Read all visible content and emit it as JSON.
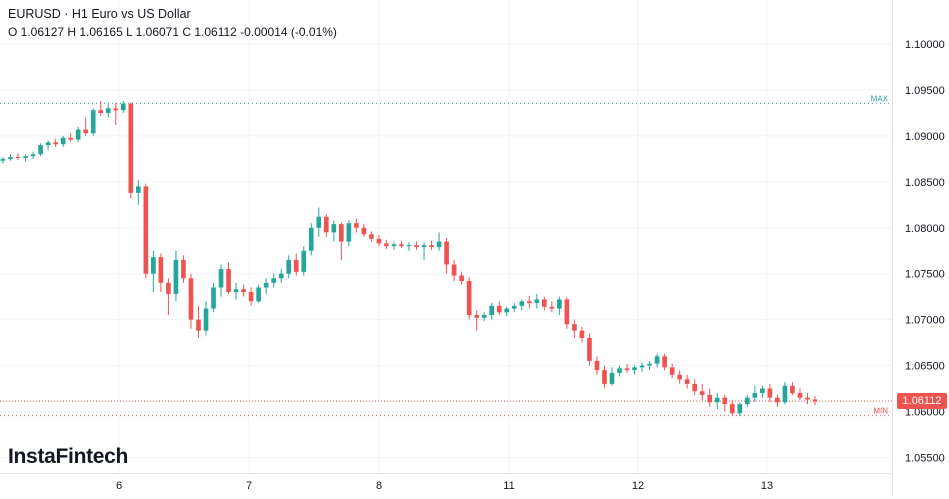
{
  "header": {
    "title": "EURUSD · H1 Euro vs US Dollar",
    "ohlc": "O 1.06127 H 1.06165 L 1.06071 C 1.06112  -0.00014 (-0.01%)"
  },
  "logo": "InstaFintech",
  "last_price_label": "1.06112",
  "colors": {
    "up": "#26a69a",
    "down": "#ef5350",
    "grid": "#f0f3fa",
    "text": "#131722"
  },
  "chart_data": {
    "type": "candlestick",
    "title": "EURUSD · H1 Euro vs US Dollar",
    "xlabel": "",
    "ylabel": "",
    "ylim": [
      1.0533,
      1.1048
    ],
    "y_ticks": [
      1.1,
      1.095,
      1.09,
      1.085,
      1.08,
      1.075,
      1.07,
      1.065,
      1.06,
      1.055
    ],
    "y_tick_labels": [
      "1.10000",
      "1.09500",
      "1.09000",
      "1.08500",
      "1.08000",
      "1.07500",
      "1.07000",
      "1.06500",
      "1.06000",
      "1.05500"
    ],
    "x_tick_labels": [
      "6",
      "7",
      "8",
      "11",
      "12",
      "13"
    ],
    "max_line": {
      "label": "MAX",
      "value": 1.09355
    },
    "min_line": {
      "label": "MIN",
      "value": 1.05955
    },
    "last_price": 1.06112,
    "candles": [
      [
        1.0873,
        1.0877,
        1.087,
        1.0875
      ],
      [
        1.0875,
        1.088,
        1.0873,
        1.0877
      ],
      [
        1.0877,
        1.0881,
        1.0874,
        1.0876
      ],
      [
        1.0876,
        1.088,
        1.0872,
        1.0878
      ],
      [
        1.0878,
        1.0883,
        1.0875,
        1.088
      ],
      [
        1.088,
        1.0892,
        1.0878,
        1.089
      ],
      [
        1.089,
        1.0895,
        1.0885,
        1.0893
      ],
      [
        1.0893,
        1.0897,
        1.0888,
        1.0891
      ],
      [
        1.0891,
        1.09,
        1.0888,
        1.0898
      ],
      [
        1.0898,
        1.0903,
        1.0894,
        1.0896
      ],
      [
        1.0896,
        1.091,
        1.0893,
        1.0907
      ],
      [
        1.0907,
        1.092,
        1.09,
        1.0903
      ],
      [
        1.0903,
        1.093,
        1.09,
        1.0928
      ],
      [
        1.0928,
        1.0938,
        1.0922,
        1.0925
      ],
      [
        1.0925,
        1.0935,
        1.092,
        1.093
      ],
      [
        1.093,
        1.0936,
        1.0912,
        1.0928
      ],
      [
        1.0928,
        1.0938,
        1.0925,
        1.0935
      ],
      [
        1.0935,
        1.0937,
        1.0832,
        1.0838
      ],
      [
        1.0838,
        1.0852,
        1.0825,
        1.0845
      ],
      [
        1.0845,
        1.0848,
        1.0745,
        1.075
      ],
      [
        1.075,
        1.0775,
        1.073,
        1.0768
      ],
      [
        1.0768,
        1.0772,
        1.073,
        1.074
      ],
      [
        1.074,
        1.0745,
        1.0705,
        1.0728
      ],
      [
        1.0728,
        1.0775,
        1.072,
        1.0765
      ],
      [
        1.0765,
        1.077,
        1.074,
        1.0745
      ],
      [
        1.0745,
        1.075,
        1.069,
        1.07
      ],
      [
        1.07,
        1.0715,
        1.068,
        1.0688
      ],
      [
        1.0688,
        1.072,
        1.0683,
        1.0712
      ],
      [
        1.0712,
        1.074,
        1.0708,
        1.0735
      ],
      [
        1.0735,
        1.076,
        1.0725,
        1.0755
      ],
      [
        1.0755,
        1.0762,
        1.0728,
        1.073
      ],
      [
        1.073,
        1.074,
        1.0722,
        1.0733
      ],
      [
        1.0733,
        1.0738,
        1.0725,
        1.073
      ],
      [
        1.073,
        1.0735,
        1.0715,
        1.072
      ],
      [
        1.072,
        1.0738,
        1.0718,
        1.0735
      ],
      [
        1.0735,
        1.0745,
        1.0728,
        1.074
      ],
      [
        1.074,
        1.075,
        1.0735,
        1.0745
      ],
      [
        1.0745,
        1.0755,
        1.074,
        1.075
      ],
      [
        1.075,
        1.077,
        1.0745,
        1.0765
      ],
      [
        1.0765,
        1.0772,
        1.0748,
        1.0752
      ],
      [
        1.0752,
        1.078,
        1.0748,
        1.0775
      ],
      [
        1.0775,
        1.0805,
        1.077,
        1.08
      ],
      [
        1.08,
        1.0822,
        1.079,
        1.0812
      ],
      [
        1.0812,
        1.0815,
        1.079,
        1.0795
      ],
      [
        1.0795,
        1.0808,
        1.0785,
        1.0804
      ],
      [
        1.0804,
        1.0806,
        1.0765,
        1.0785
      ],
      [
        1.0785,
        1.0808,
        1.078,
        1.0805
      ],
      [
        1.0805,
        1.081,
        1.0795,
        1.08
      ],
      [
        1.08,
        1.0804,
        1.079,
        1.0793
      ],
      [
        1.0793,
        1.0796,
        1.0785,
        1.0788
      ],
      [
        1.0788,
        1.0792,
        1.078,
        1.0783
      ],
      [
        1.0783,
        1.0787,
        1.0777,
        1.078
      ],
      [
        1.078,
        1.0785,
        1.0776,
        1.0782
      ],
      [
        1.0782,
        1.0786,
        1.0778,
        1.078
      ],
      [
        1.078,
        1.0784,
        1.0775,
        1.0781
      ],
      [
        1.0781,
        1.0785,
        1.0776,
        1.0779
      ],
      [
        1.0779,
        1.0784,
        1.0765,
        1.0781
      ],
      [
        1.0781,
        1.0786,
        1.0776,
        1.0779
      ],
      [
        1.0779,
        1.0795,
        1.0775,
        1.0785
      ],
      [
        1.0785,
        1.0789,
        1.075,
        1.076
      ],
      [
        1.076,
        1.0765,
        1.0742,
        1.0748
      ],
      [
        1.0748,
        1.0752,
        1.0738,
        1.0742
      ],
      [
        1.0742,
        1.0746,
        1.07,
        1.0705
      ],
      [
        1.0705,
        1.071,
        1.0688,
        1.0702
      ],
      [
        1.0702,
        1.0708,
        1.0698,
        1.0705
      ],
      [
        1.0705,
        1.0718,
        1.07,
        1.0715
      ],
      [
        1.0715,
        1.072,
        1.0705,
        1.0708
      ],
      [
        1.0708,
        1.0714,
        1.0704,
        1.0712
      ],
      [
        1.0712,
        1.0718,
        1.0708,
        1.0715
      ],
      [
        1.0715,
        1.0722,
        1.071,
        1.072
      ],
      [
        1.072,
        1.0726,
        1.0712,
        1.0718
      ],
      [
        1.0718,
        1.0728,
        1.0712,
        1.0722
      ],
      [
        1.0722,
        1.0725,
        1.071,
        1.0714
      ],
      [
        1.0714,
        1.072,
        1.0708,
        1.0712
      ],
      [
        1.0712,
        1.0725,
        1.0705,
        1.0722
      ],
      [
        1.0722,
        1.0724,
        1.069,
        1.0695
      ],
      [
        1.0695,
        1.07,
        1.068,
        1.0688
      ],
      [
        1.0688,
        1.0692,
        1.0675,
        1.068
      ],
      [
        1.068,
        1.0685,
        1.065,
        1.0655
      ],
      [
        1.0655,
        1.066,
        1.064,
        1.0645
      ],
      [
        1.0645,
        1.065,
        1.0625,
        1.063
      ],
      [
        1.063,
        1.0648,
        1.0628,
        1.0642
      ],
      [
        1.0642,
        1.065,
        1.0638,
        1.0647
      ],
      [
        1.0647,
        1.0652,
        1.0642,
        1.0645
      ],
      [
        1.0645,
        1.065,
        1.064,
        1.0648
      ],
      [
        1.0648,
        1.0653,
        1.0643,
        1.065
      ],
      [
        1.065,
        1.0655,
        1.0645,
        1.0652
      ],
      [
        1.0652,
        1.0663,
        1.0648,
        1.066
      ],
      [
        1.066,
        1.0663,
        1.0645,
        1.0648
      ],
      [
        1.0648,
        1.0652,
        1.0636,
        1.064
      ],
      [
        1.064,
        1.0645,
        1.063,
        1.0635
      ],
      [
        1.0635,
        1.064,
        1.0625,
        1.063
      ],
      [
        1.063,
        1.0635,
        1.0618,
        1.0622
      ],
      [
        1.0622,
        1.063,
        1.0612,
        1.0618
      ],
      [
        1.0618,
        1.0625,
        1.0605,
        1.061
      ],
      [
        1.061,
        1.062,
        1.0602,
        1.0615
      ],
      [
        1.0615,
        1.0618,
        1.06,
        1.0608
      ],
      [
        1.0608,
        1.0612,
        1.0595,
        1.0598
      ],
      [
        1.0598,
        1.061,
        1.0595,
        1.0608
      ],
      [
        1.0608,
        1.0618,
        1.0605,
        1.0615
      ],
      [
        1.0615,
        1.0628,
        1.061,
        1.062
      ],
      [
        1.062,
        1.0628,
        1.0615,
        1.0625
      ],
      [
        1.0625,
        1.063,
        1.061,
        1.0615
      ],
      [
        1.0615,
        1.0618,
        1.0605,
        1.061
      ],
      [
        1.061,
        1.0632,
        1.0608,
        1.0628
      ],
      [
        1.0628,
        1.0632,
        1.0618,
        1.062
      ],
      [
        1.062,
        1.0625,
        1.0612,
        1.0615
      ],
      [
        1.0615,
        1.062,
        1.0608,
        1.0613
      ],
      [
        1.0613,
        1.0617,
        1.0607,
        1.0611
      ]
    ]
  }
}
